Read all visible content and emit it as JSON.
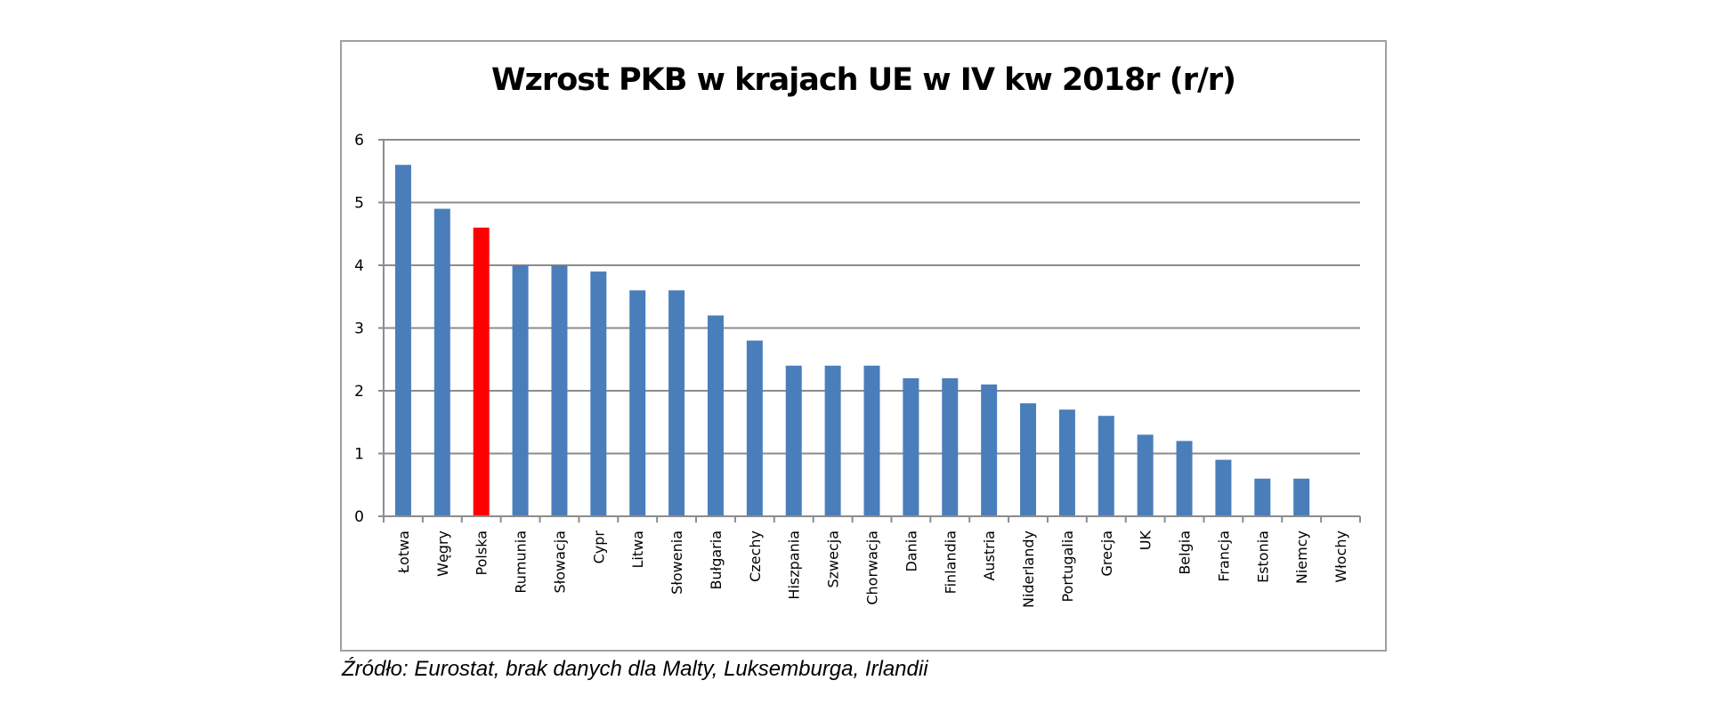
{
  "chart_data": {
    "type": "bar",
    "title": "Wzrost PKB w krajach UE w IV kw 2018r (r/r)",
    "xlabel": "",
    "ylabel": "",
    "ylim": [
      0,
      6
    ],
    "yticks": [
      0,
      1,
      2,
      3,
      4,
      5,
      6
    ],
    "grid": true,
    "legend": "none",
    "categories": [
      "Łotwa",
      "Węgry",
      "Polska",
      "Rumunia",
      "Słowacja",
      "Cypr",
      "Litwa",
      "Słowenia",
      "Bułgaria",
      "Czechy",
      "Hiszpania",
      "Szwecja",
      "Chorwacja",
      "Dania",
      "Finlandia",
      "Austria",
      "Niderlandy",
      "Portugalia",
      "Grecja",
      "UK",
      "Belgia",
      "Francja",
      "Estonia",
      "Niemcy",
      "Włochy"
    ],
    "values": [
      5.6,
      4.9,
      4.6,
      4.0,
      4.0,
      3.9,
      3.6,
      3.6,
      3.2,
      2.8,
      2.4,
      2.4,
      2.4,
      2.2,
      2.2,
      2.1,
      1.8,
      1.7,
      1.6,
      1.3,
      1.2,
      0.9,
      0.6,
      0.6,
      0
    ],
    "highlight": "Polska",
    "colors": {
      "bar": "#4a7ebb",
      "highlight": "#ff0000",
      "grid": "#8c8c8c"
    }
  },
  "source": "Źródło: Eurostat, brak danych dla Malty, Luksemburga, Irlandii"
}
